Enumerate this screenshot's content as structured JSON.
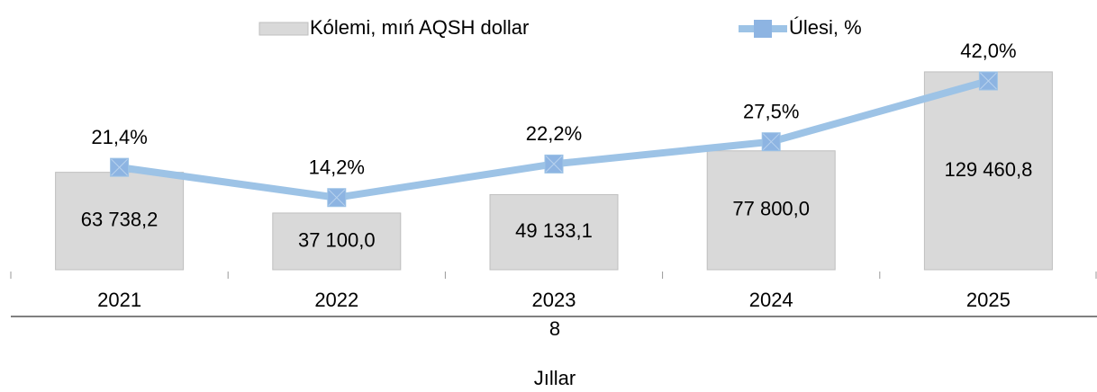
{
  "chart_data": {
    "type": "bar_line",
    "categories": [
      "2021",
      "2022",
      "2023",
      "2024",
      "2025"
    ],
    "series": [
      {
        "name": "Kólemi, mıń AQSH dollar",
        "type": "bar",
        "color": "#d9d9d9",
        "values": [
          63738.2,
          37100.0,
          49133.1,
          77800.0,
          129460.8
        ],
        "value_labels": [
          "63 738,2",
          "37 100,0",
          "49 133,1",
          "77 800,0",
          "129 460,8"
        ]
      },
      {
        "name": "Úlesi, %",
        "type": "line",
        "axis": "y2",
        "color": "#9dc3e6",
        "values": [
          21.4,
          14.2,
          22.2,
          27.5,
          42.0
        ],
        "value_labels": [
          "21,4%",
          "14,2%",
          "22,2%",
          "27,5%",
          "42,0%"
        ]
      }
    ],
    "ylim": [
      0,
      140000
    ],
    "y2lim": [
      -3,
      48
    ],
    "xlabel": "Jıllar",
    "note": "8",
    "legend": "top"
  }
}
